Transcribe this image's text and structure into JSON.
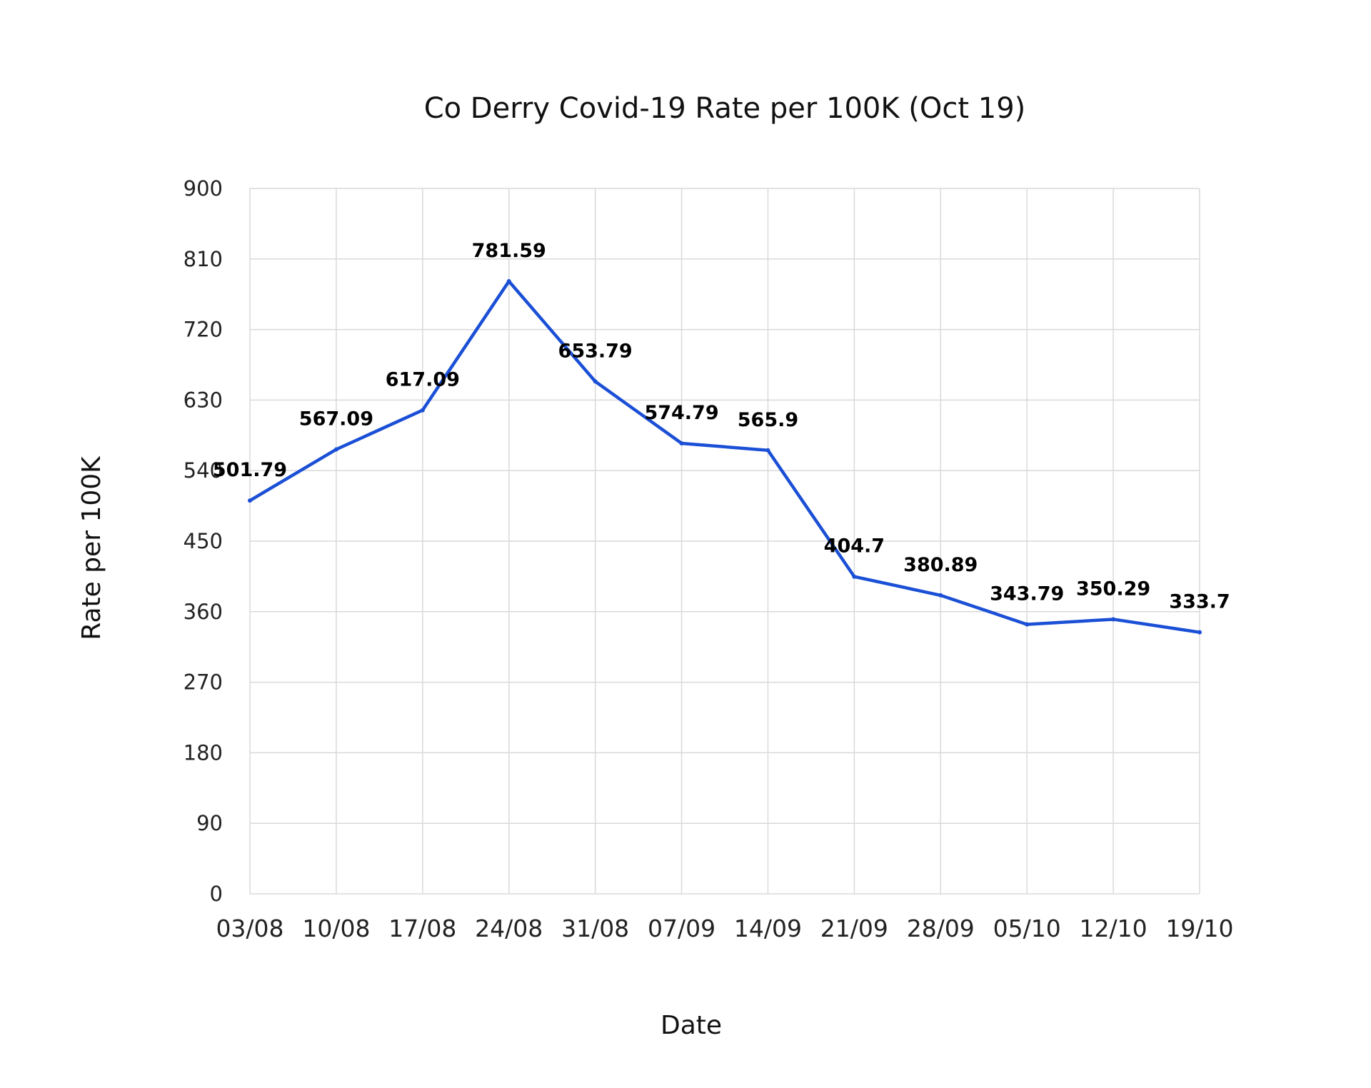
{
  "chart_data": {
    "type": "line",
    "title": "Co Derry Covid-19 Rate per 100K (Oct 19)",
    "xlabel": "Date",
    "ylabel": "Rate per 100K",
    "categories": [
      "03/08",
      "10/08",
      "17/08",
      "24/08",
      "31/08",
      "07/09",
      "14/09",
      "21/09",
      "28/09",
      "05/10",
      "12/10",
      "19/10"
    ],
    "values": [
      501.79,
      567.09,
      617.09,
      781.59,
      653.79,
      574.79,
      565.9,
      404.7,
      380.89,
      343.79,
      350.29,
      333.7
    ],
    "data_labels": [
      "501.79",
      "567.09",
      "617.09",
      "781.59",
      "653.79",
      "574.79",
      "565.9",
      "404.7",
      "380.89",
      "343.79",
      "350.29",
      "333.7"
    ],
    "ylim": [
      0,
      900
    ],
    "yticks": [
      0,
      90,
      180,
      270,
      360,
      450,
      540,
      630,
      720,
      810,
      900
    ],
    "grid": true,
    "legend": "none",
    "line_color": "#1a4fd6"
  }
}
